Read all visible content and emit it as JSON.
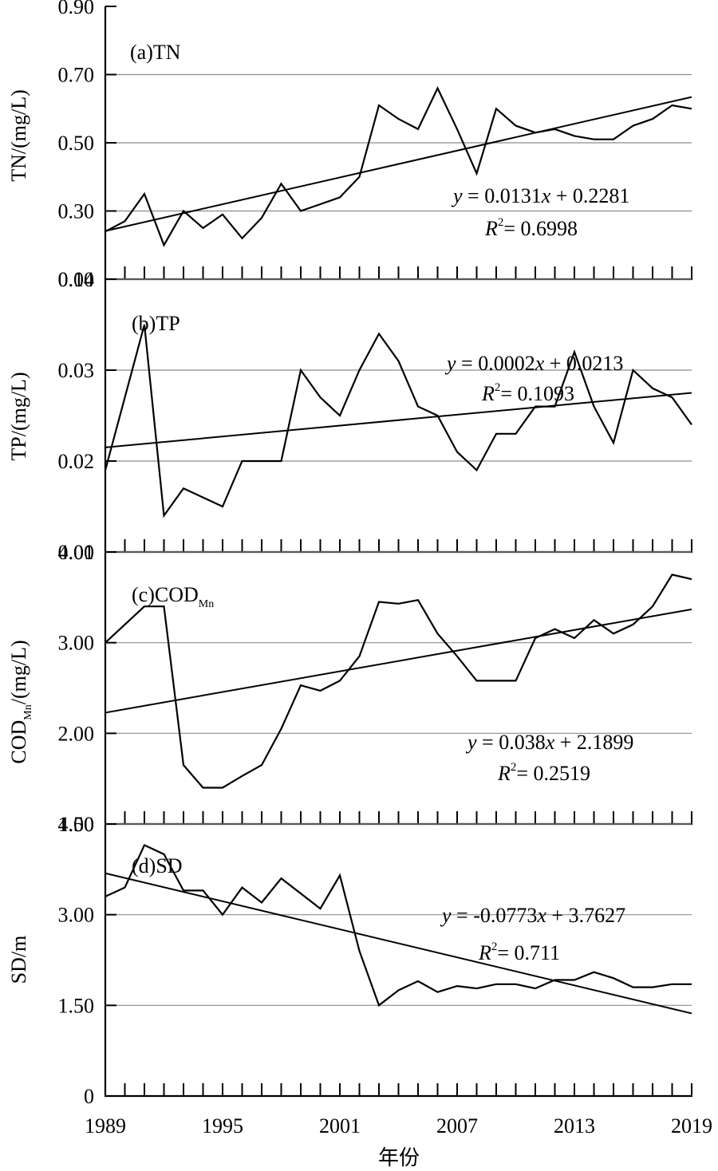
{
  "figure": {
    "xlabel": "年份"
  },
  "chart_data": [
    {
      "type": "line",
      "panel_label": "(a)TN",
      "ylabel": "TN/(mg/L)",
      "ylim": [
        0.1,
        0.9
      ],
      "yticks": [
        "0.10",
        "0.30",
        "0.50",
        "0.70",
        "0.90"
      ],
      "gridlines": [
        0.3,
        0.5,
        0.7
      ],
      "x": [
        1989,
        1990,
        1991,
        1992,
        1993,
        1994,
        1995,
        1996,
        1997,
        1998,
        1999,
        2000,
        2001,
        2002,
        2003,
        2004,
        2005,
        2006,
        2007,
        2008,
        2009,
        2010,
        2011,
        2012,
        2013,
        2014,
        2015,
        2016,
        2017,
        2018,
        2019
      ],
      "values": [
        0.24,
        0.27,
        0.35,
        0.2,
        0.3,
        0.25,
        0.29,
        0.22,
        0.28,
        0.38,
        0.3,
        0.32,
        0.34,
        0.4,
        0.61,
        0.57,
        0.54,
        0.66,
        0.54,
        0.41,
        0.6,
        0.55,
        0.53,
        0.54,
        0.52,
        0.51,
        0.51,
        0.55,
        0.57,
        0.61,
        0.6
      ],
      "trend": {
        "slope": 0.0131,
        "intercept": 0.2281
      },
      "equation": {
        "y": "y",
        "eq": " = 0.0131",
        "x": "x",
        "rest": " + 0.2281"
      },
      "r2": {
        "R": "R",
        "sup": "2",
        "val": "= 0.6998"
      }
    },
    {
      "type": "line",
      "panel_label": "(b)TP",
      "ylabel": "TP/(mg/L)",
      "ylim": [
        0.01,
        0.04
      ],
      "yticks": [
        "0.01",
        "0.02",
        "0.03",
        "0.04"
      ],
      "gridlines": [
        0.02,
        0.03,
        0.04
      ],
      "x": [
        1989,
        1990,
        1991,
        1992,
        1993,
        1994,
        1995,
        1996,
        1997,
        1998,
        1999,
        2000,
        2001,
        2002,
        2003,
        2004,
        2005,
        2006,
        2007,
        2008,
        2009,
        2010,
        2011,
        2012,
        2013,
        2014,
        2015,
        2016,
        2017,
        2018,
        2019
      ],
      "values": [
        0.019,
        0.027,
        0.035,
        0.014,
        0.017,
        0.016,
        0.015,
        0.02,
        0.02,
        0.02,
        0.03,
        0.027,
        0.025,
        0.03,
        0.034,
        0.031,
        0.026,
        0.025,
        0.021,
        0.019,
        0.023,
        0.023,
        0.026,
        0.026,
        0.032,
        0.026,
        0.022,
        0.03,
        0.028,
        0.027,
        0.024
      ],
      "trend": {
        "slope": 0.0002,
        "intercept": 0.0213
      },
      "equation": {
        "y": "y",
        "eq": " = 0.0002",
        "x": "x",
        "rest": " + 0.0213"
      },
      "r2": {
        "R": "R",
        "sup": "2",
        "val": "= 0.1093"
      }
    },
    {
      "type": "line",
      "panel_label_main": "(c)COD",
      "panel_label_sub": "Mn",
      "ylabel_main": "COD",
      "ylabel_sub": "Mn",
      "ylabel_rest": "/(mg/L)",
      "ylim": [
        1.0,
        4.0
      ],
      "yticks": [
        "1.00",
        "2.00",
        "3.00",
        "4.00"
      ],
      "gridlines": [
        2.0,
        3.0,
        4.0
      ],
      "x": [
        1989,
        1990,
        1991,
        1992,
        1993,
        1994,
        1995,
        1996,
        1997,
        1998,
        1999,
        2000,
        2001,
        2002,
        2003,
        2004,
        2005,
        2006,
        2007,
        2008,
        2009,
        2010,
        2011,
        2012,
        2013,
        2014,
        2015,
        2016,
        2017,
        2018,
        2019
      ],
      "values": [
        3.0,
        3.2,
        3.4,
        3.4,
        1.65,
        1.4,
        1.4,
        1.53,
        1.65,
        2.05,
        2.53,
        2.47,
        2.58,
        2.85,
        3.45,
        3.43,
        3.47,
        3.1,
        2.85,
        2.58,
        2.58,
        2.58,
        3.05,
        3.15,
        3.05,
        3.25,
        3.1,
        3.2,
        3.4,
        3.75,
        3.7
      ],
      "trend": {
        "slope": 0.038,
        "intercept": 2.1899
      },
      "equation": {
        "y": "y",
        "eq": " = 0.038",
        "x": "x",
        "rest": " + 2.1899"
      },
      "r2": {
        "R": "R",
        "sup": "2",
        "val": "= 0.2519"
      }
    },
    {
      "type": "line",
      "panel_label": "(d)SD",
      "ylabel": "SD/m",
      "ylim": [
        0,
        4.5
      ],
      "yticks": [
        "0",
        "1.50",
        "3.00",
        "4.50"
      ],
      "gridlines": [
        1.5,
        3.0,
        4.5
      ],
      "x": [
        1989,
        1990,
        1991,
        1992,
        1993,
        1994,
        1995,
        1996,
        1997,
        1998,
        1999,
        2000,
        2001,
        2002,
        2003,
        2004,
        2005,
        2006,
        2007,
        2008,
        2009,
        2010,
        2011,
        2012,
        2013,
        2014,
        2015,
        2016,
        2017,
        2018,
        2019
      ],
      "values": [
        3.3,
        3.45,
        4.15,
        4.0,
        3.4,
        3.4,
        3.0,
        3.45,
        3.2,
        3.6,
        3.35,
        3.1,
        3.65,
        2.4,
        1.5,
        1.75,
        1.9,
        1.72,
        1.82,
        1.78,
        1.85,
        1.85,
        1.78,
        1.92,
        1.92,
        2.05,
        1.95,
        1.8,
        1.8,
        1.85,
        1.85
      ],
      "trend": {
        "slope": -0.0773,
        "intercept": 3.7627
      },
      "equation": {
        "y": "y",
        "eq": " = -0.0773",
        "x": "x",
        "rest": " + 3.7627"
      },
      "r2": {
        "R": "R",
        "sup": "2",
        "val": "= 0.711"
      }
    }
  ],
  "xaxis": {
    "range": [
      1989,
      2019
    ],
    "ticklabels": [
      "1989",
      "1995",
      "2001",
      "2007",
      "2013",
      "2019"
    ]
  }
}
